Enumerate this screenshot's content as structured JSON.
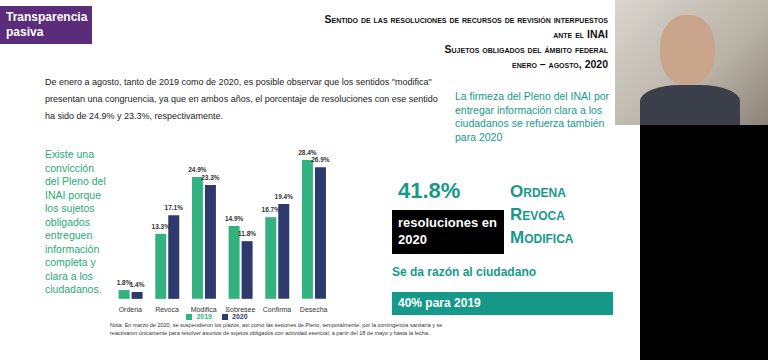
{
  "header": {
    "tag": "Transparencia pasiva",
    "title_lines": [
      "Sentido de las resoluciones de recursos de revisión interpuestos",
      "ante el INAI",
      "Sujetos obligados del ámbito federal",
      "enero – agosto, 2020"
    ]
  },
  "paragraph": "De enero a agosto, tanto de 2019 como de 2020, es posible observar que los sentidos \"modifica\" presentan una congruencia, ya que en ambos años, el porcentaje de resoluciones con ese sentido ha sido de 24.9% y 23.3%, respectivamente.",
  "side_note": "Existe una convicción del Pleno del INAI porque los sujetos obligados entreguen información completa y clara a los ciudadanos.",
  "chart_data": {
    "type": "bar",
    "categories": [
      "Ordena",
      "Revoca",
      "Modifica",
      "Sobresee",
      "Confirma",
      "Desecha"
    ],
    "series": [
      {
        "name": "2019",
        "color": "#33b27f",
        "values": [
          1.8,
          13.3,
          24.9,
          14.9,
          16.7,
          28.4
        ],
        "value_labels": [
          "1.8%",
          "13.3%",
          "24.9%",
          "14.9%",
          "16.7%",
          "28.4%"
        ]
      },
      {
        "name": "2020",
        "color": "#2e3a6e",
        "values": [
          1.4,
          17.1,
          23.3,
          11.8,
          19.4,
          26.9
        ],
        "value_labels": [
          "1.4%",
          "17.1%",
          "23.3%",
          "11.8%",
          "19.4%",
          "26.9%"
        ]
      }
    ],
    "data_labels": true,
    "tick_labels": "x",
    "legend": "bottom",
    "note": "Nota: En marzo de 2020, se suspendieron los plazos, así como las sesiones de Pleno, temporalmente, por la contingencia sanitaria y se reactivaron únicamente para resolver asuntos de sujetos obligados con actividad esencial, a partir del 18 de mayo y hasta la fecha."
  },
  "panel": {
    "lead": "La firmeza del Pleno del INAI por entregar información clara a los ciudadanos se refuerza también para 2020",
    "figure": "41.8%",
    "box": "resoluciones en 2020",
    "actions": [
      "Ordena",
      "Revoca",
      "Modifica"
    ],
    "tagline": "Se da razón al ciudadano",
    "footer": "40% para 2019"
  }
}
